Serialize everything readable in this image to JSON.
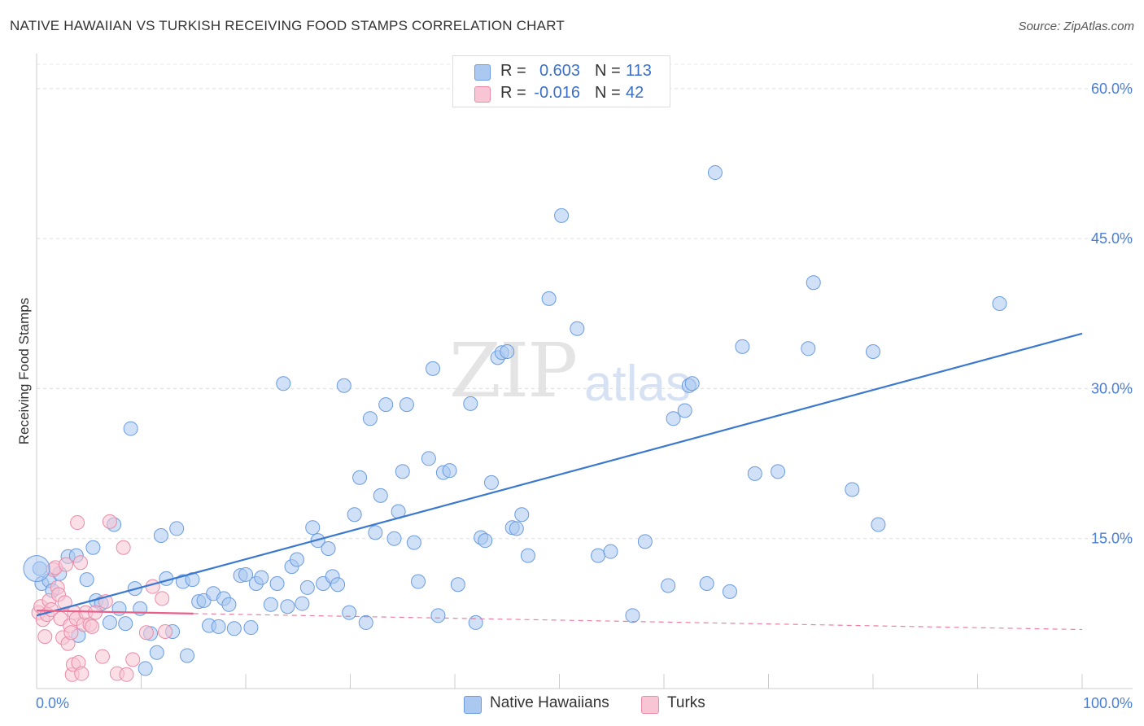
{
  "title": "NATIVE HAWAIIAN VS TURKISH RECEIVING FOOD STAMPS CORRELATION CHART",
  "source": "Source: ZipAtlas.com",
  "watermark": {
    "zip": "ZIP",
    "atlas": "atlas"
  },
  "legend_top": {
    "rows": [
      {
        "r_label": "R =",
        "r_value": "0.603",
        "n_label": "N =",
        "n_value": "113",
        "color": "#aac8f0",
        "border": "#6a9be0"
      },
      {
        "r_label": "R =",
        "r_value": "-0.016",
        "n_label": "N =",
        "n_value": "42",
        "color": "#f8c5d4",
        "border": "#ea8aa8"
      }
    ]
  },
  "legend_bottom": {
    "items": [
      {
        "label": "Native Hawaiians",
        "color": "#aac8f0",
        "border": "#6a9be0"
      },
      {
        "label": "Turks",
        "color": "#f8c5d4",
        "border": "#ea8aa8"
      }
    ]
  },
  "chart_data": {
    "type": "scatter",
    "title": "NATIVE HAWAIIAN VS TURKISH RECEIVING FOOD STAMPS CORRELATION CHART",
    "xlabel": "",
    "ylabel": "Receiving Food Stamps",
    "xlim": [
      0,
      100
    ],
    "ylim": [
      0,
      63
    ],
    "x_tick_labels": [
      {
        "value": 0,
        "label": "0.0%"
      },
      {
        "value": 100,
        "label": "100.0%"
      }
    ],
    "y_tick_labels": [
      {
        "value": 15,
        "label": "15.0%"
      },
      {
        "value": 30,
        "label": "30.0%"
      },
      {
        "value": 45,
        "label": "45.0%"
      },
      {
        "value": 60,
        "label": "60.0%"
      }
    ],
    "grid": true,
    "series": [
      {
        "name": "Native Hawaiians",
        "color": "#6a9be0",
        "fill": "#aac8f0",
        "trend": {
          "x": [
            0,
            100
          ],
          "y": [
            7.3,
            35.5
          ],
          "color": "#3a78d0",
          "dashed": false
        },
        "points": [
          [
            0.3,
            12.0
          ],
          [
            0.5,
            10.5
          ],
          [
            1.2,
            10.8
          ],
          [
            1.5,
            9.8
          ],
          [
            2.2,
            11.5
          ],
          [
            3.0,
            13.2
          ],
          [
            3.8,
            13.3
          ],
          [
            4.8,
            10.9
          ],
          [
            5.4,
            14.1
          ],
          [
            5.7,
            8.8
          ],
          [
            4.0,
            5.3
          ],
          [
            6.2,
            8.5
          ],
          [
            7.0,
            6.6
          ],
          [
            7.4,
            16.4
          ],
          [
            7.9,
            8.0
          ],
          [
            8.5,
            6.5
          ],
          [
            9.0,
            26.0
          ],
          [
            9.4,
            10.0
          ],
          [
            9.9,
            8.0
          ],
          [
            10.4,
            2.0
          ],
          [
            10.9,
            5.5
          ],
          [
            11.5,
            3.6
          ],
          [
            11.9,
            15.3
          ],
          [
            12.4,
            11.0
          ],
          [
            13.0,
            5.7
          ],
          [
            13.4,
            16.0
          ],
          [
            14.0,
            10.7
          ],
          [
            14.4,
            3.3
          ],
          [
            14.9,
            10.9
          ],
          [
            15.5,
            8.7
          ],
          [
            16.0,
            8.8
          ],
          [
            16.5,
            6.3
          ],
          [
            16.9,
            9.5
          ],
          [
            17.4,
            6.2
          ],
          [
            17.9,
            9.0
          ],
          [
            18.4,
            8.4
          ],
          [
            18.9,
            6.0
          ],
          [
            19.5,
            11.3
          ],
          [
            20.0,
            11.4
          ],
          [
            20.5,
            6.1
          ],
          [
            21.0,
            10.5
          ],
          [
            21.5,
            11.1
          ],
          [
            22.4,
            8.4
          ],
          [
            23.0,
            10.5
          ],
          [
            23.6,
            30.5
          ],
          [
            24.0,
            8.2
          ],
          [
            24.4,
            12.2
          ],
          [
            24.9,
            12.9
          ],
          [
            25.4,
            8.5
          ],
          [
            25.9,
            10.1
          ],
          [
            26.4,
            16.1
          ],
          [
            26.9,
            14.8
          ],
          [
            27.4,
            10.5
          ],
          [
            27.9,
            14.0
          ],
          [
            28.3,
            11.2
          ],
          [
            28.8,
            10.4
          ],
          [
            29.4,
            30.3
          ],
          [
            29.9,
            7.6
          ],
          [
            30.4,
            17.4
          ],
          [
            30.9,
            21.1
          ],
          [
            31.5,
            6.6
          ],
          [
            31.9,
            27.0
          ],
          [
            32.4,
            15.6
          ],
          [
            32.9,
            19.3
          ],
          [
            33.4,
            28.4
          ],
          [
            34.2,
            15.0
          ],
          [
            34.6,
            17.7
          ],
          [
            35.0,
            21.7
          ],
          [
            35.4,
            28.4
          ],
          [
            36.1,
            14.6
          ],
          [
            36.5,
            10.7
          ],
          [
            37.5,
            23.0
          ],
          [
            37.9,
            32.0
          ],
          [
            38.4,
            7.3
          ],
          [
            38.9,
            21.6
          ],
          [
            39.5,
            21.8
          ],
          [
            40.3,
            10.4
          ],
          [
            41.5,
            28.5
          ],
          [
            42.0,
            6.6
          ],
          [
            42.5,
            15.1
          ],
          [
            42.9,
            14.8
          ],
          [
            43.5,
            20.6
          ],
          [
            44.1,
            33.1
          ],
          [
            44.5,
            33.6
          ],
          [
            45.0,
            33.7
          ],
          [
            45.5,
            16.1
          ],
          [
            45.9,
            16.0
          ],
          [
            46.4,
            17.4
          ],
          [
            47.0,
            13.3
          ],
          [
            49.0,
            39.0
          ],
          [
            50.2,
            47.3
          ],
          [
            51.7,
            36.0
          ],
          [
            53.7,
            13.3
          ],
          [
            54.9,
            13.7
          ],
          [
            57.0,
            7.3
          ],
          [
            58.2,
            14.7
          ],
          [
            60.4,
            10.3
          ],
          [
            60.9,
            27.0
          ],
          [
            62.0,
            27.8
          ],
          [
            62.4,
            30.3
          ],
          [
            62.7,
            30.5
          ],
          [
            64.1,
            10.5
          ],
          [
            64.9,
            51.6
          ],
          [
            66.3,
            9.7
          ],
          [
            67.5,
            34.2
          ],
          [
            68.7,
            21.5
          ],
          [
            70.9,
            21.7
          ],
          [
            73.8,
            34.0
          ],
          [
            74.3,
            40.6
          ],
          [
            78.0,
            19.9
          ],
          [
            80.0,
            33.7
          ],
          [
            80.5,
            16.4
          ],
          [
            92.1,
            38.5
          ]
        ]
      },
      {
        "name": "Turks",
        "color": "#ea8aa8",
        "fill": "#f8c5d4",
        "trend": {
          "x": [
            0,
            15
          ],
          "y": [
            7.8,
            7.5
          ],
          "color": "#e8608a",
          "dashed": false,
          "extension": {
            "x": [
              15,
              100
            ],
            "y": [
              7.5,
              5.9
            ],
            "dashed": true
          }
        },
        "points": [
          [
            0.2,
            7.6
          ],
          [
            0.4,
            8.2
          ],
          [
            0.6,
            6.9
          ],
          [
            0.8,
            5.2
          ],
          [
            1.0,
            7.4
          ],
          [
            1.2,
            8.8
          ],
          [
            1.4,
            7.9
          ],
          [
            1.6,
            11.9
          ],
          [
            1.8,
            12.1
          ],
          [
            2.0,
            10.1
          ],
          [
            2.1,
            9.4
          ],
          [
            2.3,
            7.0
          ],
          [
            2.5,
            5.1
          ],
          [
            2.7,
            8.6
          ],
          [
            2.8,
            12.4
          ],
          [
            3.0,
            4.5
          ],
          [
            3.2,
            6.3
          ],
          [
            3.3,
            5.6
          ],
          [
            3.4,
            1.4
          ],
          [
            3.5,
            2.4
          ],
          [
            3.6,
            7.6
          ],
          [
            3.8,
            7.0
          ],
          [
            3.9,
            16.6
          ],
          [
            4.0,
            2.6
          ],
          [
            4.2,
            12.6
          ],
          [
            4.3,
            1.5
          ],
          [
            4.5,
            6.4
          ],
          [
            4.7,
            7.6
          ],
          [
            5.1,
            6.4
          ],
          [
            5.3,
            6.2
          ],
          [
            5.6,
            7.6
          ],
          [
            6.3,
            3.2
          ],
          [
            6.6,
            8.7
          ],
          [
            7.0,
            16.7
          ],
          [
            7.7,
            1.5
          ],
          [
            8.3,
            14.1
          ],
          [
            8.6,
            1.4
          ],
          [
            9.2,
            2.9
          ],
          [
            10.5,
            5.6
          ],
          [
            11.1,
            10.2
          ],
          [
            12.0,
            9.0
          ],
          [
            12.3,
            5.7
          ]
        ]
      }
    ]
  }
}
